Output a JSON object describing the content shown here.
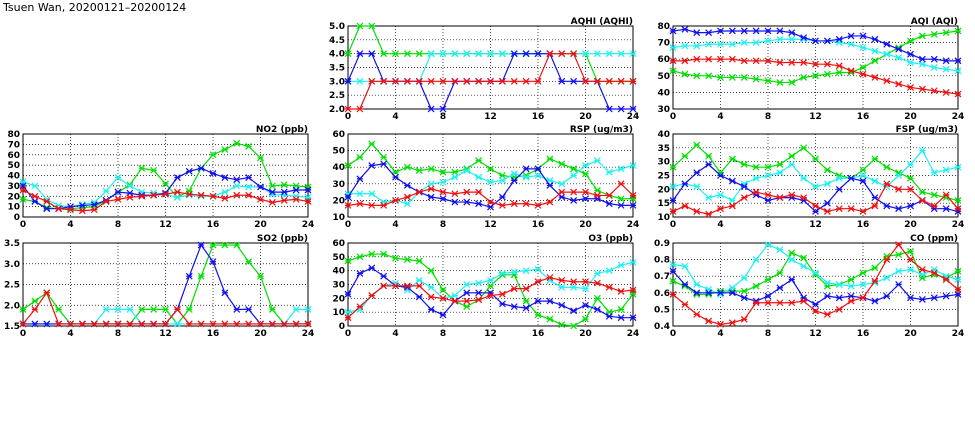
{
  "title": "Tsuen Wan, 20200121–20200124",
  "colors": {
    "green": "#00e000",
    "cyan": "#20f0f0",
    "blue": "#1010f0",
    "red": "#f01010"
  },
  "chart_data": [
    {
      "type": "line",
      "title": "AQHI (AQHI)",
      "xlim": [
        0,
        24
      ],
      "ylim": [
        2.0,
        5.0
      ],
      "yticks": [
        "2.0",
        "2.5",
        "3.0",
        "3.5",
        "4.0",
        "4.5",
        "5.0"
      ],
      "xticks": [
        "0",
        "4",
        "8",
        "12",
        "16",
        "20",
        "24"
      ],
      "series": [
        {
          "color": "green",
          "values": [
            4,
            5,
            5,
            4,
            4,
            4,
            4,
            4,
            4,
            4,
            4,
            4,
            4,
            4,
            4,
            4,
            4,
            4,
            4,
            4,
            4,
            3,
            3,
            3,
            3
          ]
        },
        {
          "color": "cyan",
          "values": [
            3,
            3,
            3,
            3,
            3,
            3,
            3,
            4,
            4,
            4,
            4,
            4,
            4,
            4,
            4,
            4,
            4,
            4,
            4,
            4,
            4,
            4,
            4,
            4,
            4
          ]
        },
        {
          "color": "blue",
          "values": [
            3,
            4,
            4,
            3,
            3,
            3,
            3,
            2,
            2,
            3,
            3,
            3,
            3,
            3,
            4,
            4,
            4,
            4,
            3,
            3,
            3,
            3,
            2,
            2,
            2
          ]
        },
        {
          "color": "red",
          "values": [
            2,
            2,
            3,
            3,
            3,
            3,
            3,
            3,
            3,
            3,
            3,
            3,
            3,
            3,
            3,
            3,
            3,
            4,
            4,
            4,
            3,
            3,
            3,
            3,
            3
          ]
        }
      ]
    },
    {
      "type": "line",
      "title": "AQI (AQI)",
      "xlim": [
        0,
        24
      ],
      "ylim": [
        30,
        80
      ],
      "yticks": [
        "30",
        "40",
        "50",
        "60",
        "70",
        "80"
      ],
      "xticks": [
        "0",
        "4",
        "8",
        "12",
        "16",
        "20",
        "24"
      ],
      "series": [
        {
          "color": "green",
          "values": [
            53,
            51,
            50,
            50,
            49,
            49,
            49,
            48,
            47,
            46,
            46,
            49,
            50,
            51,
            52,
            52,
            55,
            59,
            63,
            67,
            71,
            74,
            75,
            76,
            77
          ]
        },
        {
          "color": "cyan",
          "values": [
            67,
            68,
            68,
            69,
            69,
            69,
            70,
            70,
            71,
            72,
            72,
            72,
            71,
            71,
            70,
            69,
            67,
            65,
            63,
            61,
            58,
            57,
            55,
            54,
            53
          ]
        },
        {
          "color": "blue",
          "values": [
            77,
            78,
            76,
            76,
            77,
            77,
            77,
            77,
            77,
            77,
            76,
            73,
            71,
            71,
            72,
            74,
            74,
            72,
            69,
            66,
            63,
            60,
            60,
            59,
            59
          ]
        },
        {
          "color": "red",
          "values": [
            59,
            59,
            60,
            60,
            60,
            60,
            59,
            59,
            59,
            58,
            58,
            58,
            57,
            57,
            56,
            53,
            51,
            49,
            47,
            45,
            43,
            42,
            41,
            40,
            39
          ]
        }
      ]
    },
    {
      "type": "line",
      "title": "NO2 (ppb)",
      "xlim": [
        0,
        24
      ],
      "ylim": [
        0,
        80
      ],
      "yticks": [
        "0",
        "10",
        "20",
        "30",
        "40",
        "50",
        "60",
        "70",
        "80"
      ],
      "xticks": [
        "0",
        "4",
        "8",
        "12",
        "16",
        "20",
        "24"
      ],
      "series": [
        {
          "color": "green",
          "values": [
            17,
            15,
            9,
            8,
            8,
            9,
            10,
            16,
            24,
            31,
            47,
            45,
            32,
            19,
            25,
            47,
            60,
            65,
            71,
            68,
            57,
            30,
            31,
            30,
            29
          ]
        },
        {
          "color": "cyan",
          "values": [
            34,
            30,
            17,
            11,
            10,
            12,
            14,
            25,
            38,
            30,
            24,
            23,
            22,
            19,
            21,
            20,
            20,
            24,
            30,
            29,
            29,
            22,
            21,
            20,
            19
          ]
        },
        {
          "color": "blue",
          "values": [
            30,
            15,
            8,
            8,
            10,
            11,
            12,
            16,
            24,
            23,
            21,
            21,
            23,
            38,
            44,
            47,
            42,
            38,
            36,
            38,
            29,
            24,
            24,
            26,
            26
          ]
        },
        {
          "color": "red",
          "values": [
            26,
            20,
            15,
            8,
            7,
            6,
            7,
            15,
            17,
            19,
            20,
            21,
            22,
            24,
            22,
            21,
            20,
            18,
            21,
            21,
            17,
            14,
            16,
            17,
            15
          ]
        }
      ]
    },
    {
      "type": "line",
      "title": "RSP (ug/m3)",
      "xlim": [
        0,
        24
      ],
      "ylim": [
        10,
        60
      ],
      "yticks": [
        "10",
        "20",
        "30",
        "40",
        "50",
        "60"
      ],
      "xticks": [
        "0",
        "4",
        "8",
        "12",
        "16",
        "20",
        "24"
      ],
      "series": [
        {
          "color": "green",
          "values": [
            41,
            46,
            54,
            46,
            37,
            40,
            38,
            39,
            37,
            37,
            39,
            44,
            39,
            35,
            34,
            35,
            39,
            45,
            42,
            39,
            36,
            26,
            23,
            21,
            21
          ]
        },
        {
          "color": "cyan",
          "values": [
            24,
            24,
            24,
            19,
            20,
            18,
            25,
            30,
            31,
            34,
            38,
            34,
            31,
            32,
            36,
            34,
            35,
            32,
            30,
            35,
            41,
            44,
            37,
            39,
            41
          ]
        },
        {
          "color": "blue",
          "values": [
            22,
            33,
            41,
            42,
            34,
            29,
            25,
            22,
            21,
            19,
            19,
            18,
            16,
            22,
            32,
            39,
            39,
            29,
            22,
            20,
            21,
            21,
            18,
            17,
            17
          ]
        },
        {
          "color": "red",
          "values": [
            17,
            18,
            17,
            17,
            20,
            22,
            25,
            27,
            25,
            24,
            25,
            25,
            19,
            17,
            18,
            18,
            17,
            19,
            25,
            25,
            25,
            23,
            23,
            30,
            23
          ]
        }
      ]
    },
    {
      "type": "line",
      "title": "FSP (ug/m3)",
      "xlim": [
        0,
        24
      ],
      "ylim": [
        10,
        40
      ],
      "yticks": [
        "10",
        "15",
        "20",
        "25",
        "30",
        "35",
        "40"
      ],
      "xticks": [
        "0",
        "4",
        "8",
        "12",
        "16",
        "20",
        "24"
      ],
      "series": [
        {
          "color": "green",
          "values": [
            28,
            32,
            36,
            32,
            26,
            31,
            29,
            28,
            28,
            29,
            32,
            35,
            31,
            27,
            25,
            24,
            27,
            31,
            28,
            26,
            24,
            19,
            18,
            17,
            16
          ]
        },
        {
          "color": "cyan",
          "values": [
            21,
            22,
            21,
            17,
            18,
            16,
            22,
            24,
            25,
            26,
            29,
            24,
            21,
            22,
            24,
            24,
            25,
            23,
            21,
            25,
            29,
            34,
            26,
            27,
            28
          ]
        },
        {
          "color": "blue",
          "values": [
            16,
            22,
            26,
            29,
            25,
            23,
            21,
            18,
            16,
            17,
            17,
            16,
            12,
            15,
            20,
            24,
            23,
            17,
            14,
            13,
            14,
            16,
            13,
            13,
            12
          ]
        },
        {
          "color": "red",
          "values": [
            12,
            14,
            12,
            11,
            13,
            14,
            17,
            19,
            18,
            17,
            18,
            17,
            14,
            12,
            13,
            13,
            12,
            14,
            22,
            20,
            20,
            16,
            14,
            18,
            13
          ]
        }
      ]
    },
    {
      "type": "line",
      "title": "SO2 (ppb)",
      "xlim": [
        0,
        24
      ],
      "ylim": [
        1.5,
        3.5
      ],
      "yticks": [
        "1.5",
        "2.0",
        "2.5",
        "3.0",
        "3.5"
      ],
      "xticks": [
        "0",
        "4",
        "8",
        "12",
        "16",
        "20",
        "24"
      ],
      "series": [
        {
          "color": "green",
          "values": [
            1.9,
            2.1,
            2.3,
            1.9,
            1.55,
            1.55,
            1.55,
            1.55,
            1.55,
            1.55,
            1.9,
            1.9,
            1.9,
            1.55,
            1.9,
            2.7,
            3.45,
            3.45,
            3.45,
            3.05,
            2.7,
            1.9,
            1.55,
            1.55,
            1.55
          ]
        },
        {
          "color": "cyan",
          "values": [
            1.55,
            1.55,
            1.55,
            1.55,
            1.55,
            1.55,
            1.55,
            1.9,
            1.9,
            1.9,
            1.55,
            1.55,
            1.55,
            1.55,
            1.55,
            1.55,
            1.55,
            1.55,
            1.55,
            1.55,
            1.55,
            1.55,
            1.55,
            1.9,
            1.9
          ]
        },
        {
          "color": "blue",
          "values": [
            1.55,
            1.55,
            1.55,
            1.55,
            1.55,
            1.55,
            1.55,
            1.55,
            1.55,
            1.55,
            1.55,
            1.55,
            1.55,
            1.9,
            2.7,
            3.45,
            3.05,
            2.3,
            1.9,
            1.9,
            1.55,
            1.55,
            1.55,
            1.55,
            1.55
          ]
        },
        {
          "color": "red",
          "values": [
            1.55,
            1.9,
            2.3,
            1.55,
            1.55,
            1.55,
            1.55,
            1.55,
            1.55,
            1.55,
            1.55,
            1.55,
            1.55,
            1.9,
            1.55,
            1.55,
            1.55,
            1.55,
            1.55,
            1.55,
            1.55,
            1.55,
            1.55,
            1.55,
            1.55
          ]
        }
      ]
    },
    {
      "type": "line",
      "title": "O3 (ppb)",
      "xlim": [
        0,
        24
      ],
      "ylim": [
        0,
        60
      ],
      "yticks": [
        "0",
        "10",
        "20",
        "30",
        "40",
        "50",
        "60"
      ],
      "xticks": [
        "0",
        "4",
        "8",
        "12",
        "16",
        "20",
        "24"
      ],
      "series": [
        {
          "color": "green",
          "values": [
            47,
            50,
            52,
            52,
            49,
            48,
            47,
            40,
            26,
            18,
            14,
            19,
            29,
            37,
            37,
            18,
            8,
            5,
            1,
            0,
            5,
            20,
            10,
            12,
            23
          ]
        },
        {
          "color": "cyan",
          "values": [
            10,
            12,
            22,
            29,
            31,
            26,
            33,
            28,
            20,
            22,
            30,
            31,
            33,
            38,
            39,
            40,
            41,
            33,
            28,
            28,
            27,
            38,
            40,
            44,
            46
          ]
        },
        {
          "color": "blue",
          "values": [
            23,
            38,
            42,
            36,
            29,
            28,
            21,
            12,
            8,
            18,
            24,
            24,
            24,
            16,
            14,
            13,
            18,
            18,
            15,
            11,
            15,
            12,
            7,
            6,
            6
          ]
        },
        {
          "color": "red",
          "values": [
            6,
            14,
            22,
            29,
            29,
            29,
            29,
            21,
            20,
            18,
            18,
            19,
            22,
            23,
            27,
            27,
            32,
            35,
            33,
            32,
            32,
            31,
            28,
            25,
            26
          ]
        }
      ]
    },
    {
      "type": "line",
      "title": "CO (ppm)",
      "xlim": [
        0,
        24
      ],
      "ylim": [
        0.4,
        0.9
      ],
      "yticks": [
        "0.4",
        "0.5",
        "0.6",
        "0.7",
        "0.8",
        "0.9"
      ],
      "xticks": [
        "0",
        "4",
        "8",
        "12",
        "16",
        "20",
        "24"
      ],
      "series": [
        {
          "color": "green",
          "values": [
            0.67,
            0.64,
            0.59,
            0.59,
            0.61,
            0.61,
            0.61,
            0.64,
            0.68,
            0.72,
            0.84,
            0.81,
            0.71,
            0.64,
            0.65,
            0.68,
            0.72,
            0.75,
            0.82,
            0.83,
            0.85,
            0.69,
            0.71,
            0.69,
            0.73
          ]
        },
        {
          "color": "cyan",
          "values": [
            0.77,
            0.76,
            0.65,
            0.62,
            0.59,
            0.63,
            0.69,
            0.8,
            0.89,
            0.86,
            0.8,
            0.76,
            0.72,
            0.66,
            0.65,
            0.64,
            0.65,
            0.66,
            0.69,
            0.73,
            0.74,
            0.71,
            0.74,
            0.7,
            0.68
          ]
        },
        {
          "color": "blue",
          "values": [
            0.73,
            0.65,
            0.6,
            0.6,
            0.6,
            0.6,
            0.57,
            0.55,
            0.58,
            0.63,
            0.68,
            0.57,
            0.53,
            0.58,
            0.57,
            0.58,
            0.57,
            0.55,
            0.58,
            0.65,
            0.57,
            0.56,
            0.57,
            0.58,
            0.59
          ]
        },
        {
          "color": "red",
          "values": [
            0.59,
            0.53,
            0.47,
            0.43,
            0.41,
            0.42,
            0.44,
            0.54,
            0.54,
            0.54,
            0.54,
            0.55,
            0.49,
            0.47,
            0.5,
            0.55,
            0.57,
            0.67,
            0.8,
            0.89,
            0.8,
            0.74,
            0.72,
            0.68,
            0.62
          ]
        }
      ]
    }
  ]
}
